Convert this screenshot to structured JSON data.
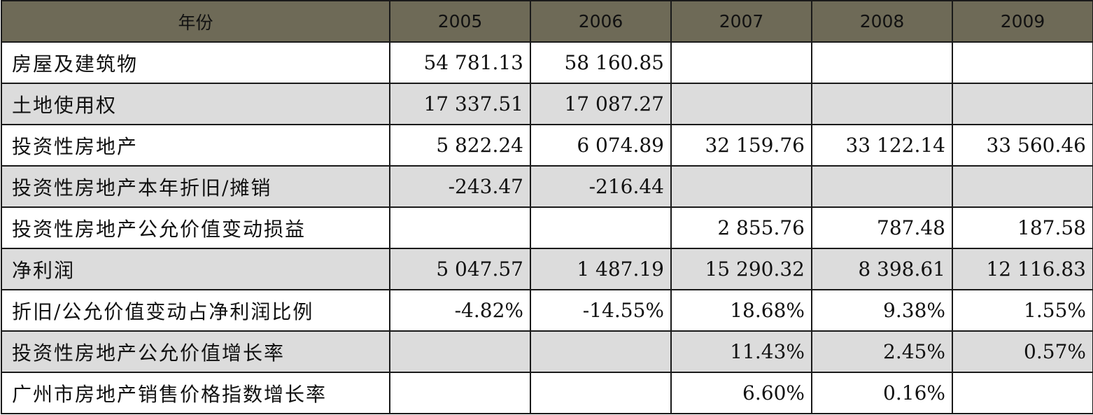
{
  "table": {
    "header": [
      "年份",
      "2005",
      "2006",
      "2007",
      "2008",
      "2009"
    ],
    "rows": [
      {
        "label": "房屋及建筑物",
        "values": [
          "54 781.13",
          "58 160.85",
          "",
          "",
          ""
        ]
      },
      {
        "label": "土地使用权",
        "values": [
          "17 337.51",
          "17 087.27",
          "",
          "",
          ""
        ]
      },
      {
        "label": "投资性房地产",
        "values": [
          "5 822.24",
          "6 074.89",
          "32 159.76",
          "33 122.14",
          "33 560.46"
        ]
      },
      {
        "label": "投资性房地产本年折旧/摊销",
        "values": [
          "-243.47",
          "-216.44",
          "",
          "",
          ""
        ]
      },
      {
        "label": "投资性房地产公允价值变动损益",
        "values": [
          "",
          "",
          "2 855.76",
          "787.48",
          "187.58"
        ]
      },
      {
        "label": "净利润",
        "values": [
          "5 047.57",
          "1 487.19",
          "15 290.32",
          "8 398.61",
          "12 116.83"
        ]
      },
      {
        "label": "折旧/公允价值变动占净利润比例",
        "values": [
          "-4.82%",
          "-14.55%",
          "18.68%",
          "9.38%",
          "1.55%"
        ]
      },
      {
        "label": "投资性房地产公允价值增长率",
        "values": [
          "",
          "",
          "11.43%",
          "2.45%",
          "0.57%"
        ]
      },
      {
        "label": "广州市房地产销售价格指数增长率",
        "values": [
          "",
          "",
          "6.60%",
          "0.16%",
          ""
        ]
      }
    ]
  },
  "colors": {
    "header_bg": "#6e6a57",
    "row_shaded_bg": "#dcdcdc",
    "row_plain_bg": "#ffffff",
    "border": "#1a1a1a"
  }
}
